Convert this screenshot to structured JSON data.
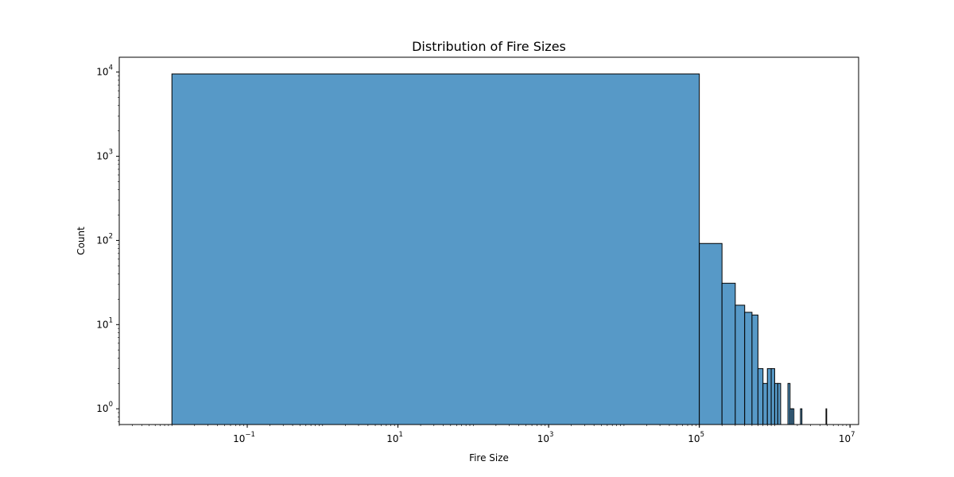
{
  "chart_data": {
    "type": "bar",
    "title": "Distribution of Fire Sizes",
    "xlabel": "Fire Size",
    "ylabel": "Count",
    "x_scale": "log",
    "y_scale": "log",
    "xlim": [
      0.002,
      13000000
    ],
    "ylim": [
      0.65,
      15000
    ],
    "x_major_ticks": [
      {
        "value": 0.1,
        "base": "10",
        "exp": "−1"
      },
      {
        "value": 10,
        "base": "10",
        "exp": "1"
      },
      {
        "value": 1000,
        "base": "10",
        "exp": "3"
      },
      {
        "value": 100000,
        "base": "10",
        "exp": "5"
      },
      {
        "value": 10000000,
        "base": "10",
        "exp": "7"
      }
    ],
    "y_major_ticks": [
      {
        "value": 1,
        "base": "10",
        "exp": "0"
      },
      {
        "value": 10,
        "base": "10",
        "exp": "1"
      },
      {
        "value": 100,
        "base": "10",
        "exp": "2"
      },
      {
        "value": 1000,
        "base": "10",
        "exp": "3"
      },
      {
        "value": 10000,
        "base": "10",
        "exp": "4"
      }
    ],
    "bar_color": "#5799c7",
    "edge_color": "#000000",
    "bins": [
      {
        "x0": 0.01,
        "x1": 100000,
        "count": 9500
      },
      {
        "x0": 100000,
        "x1": 200000,
        "count": 92
      },
      {
        "x0": 200000,
        "x1": 300000,
        "count": 31
      },
      {
        "x0": 300000,
        "x1": 400000,
        "count": 17
      },
      {
        "x0": 400000,
        "x1": 500000,
        "count": 14
      },
      {
        "x0": 500000,
        "x1": 600000,
        "count": 13
      },
      {
        "x0": 600000,
        "x1": 700000,
        "count": 3
      },
      {
        "x0": 700000,
        "x1": 800000,
        "count": 2
      },
      {
        "x0": 800000,
        "x1": 900000,
        "count": 3
      },
      {
        "x0": 900000,
        "x1": 1000000,
        "count": 3
      },
      {
        "x0": 1000000,
        "x1": 1100000,
        "count": 2
      },
      {
        "x0": 1100000,
        "x1": 1200000,
        "count": 2
      },
      {
        "x0": 1500000,
        "x1": 1600000,
        "count": 2
      },
      {
        "x0": 1600000,
        "x1": 1700000,
        "count": 1
      },
      {
        "x0": 1700000,
        "x1": 1800000,
        "count": 1
      },
      {
        "x0": 2200000,
        "x1": 2300000,
        "count": 1
      },
      {
        "x0": 4800000,
        "x1": 4900000,
        "count": 1
      }
    ]
  }
}
